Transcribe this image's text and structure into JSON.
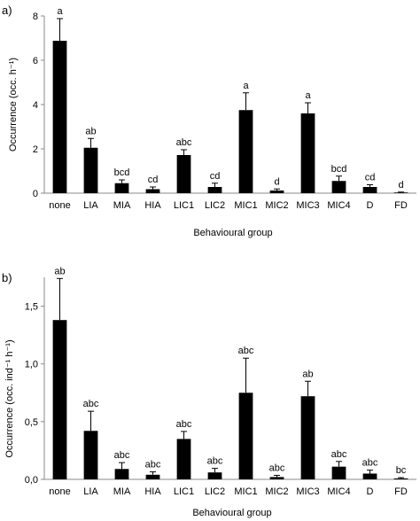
{
  "chart_data": [
    {
      "panel_label": "a)",
      "type": "bar",
      "categories": [
        "none",
        "LIA",
        "MIA",
        "HIA",
        "LIC1",
        "LIC2",
        "MIC1",
        "MIC2",
        "MIC3",
        "MIC4",
        "D",
        "FD"
      ],
      "values": [
        6.88,
        2.05,
        0.45,
        0.18,
        1.72,
        0.28,
        3.75,
        0.12,
        3.6,
        0.55,
        0.28,
        0.03
      ],
      "errors": [
        1.0,
        0.42,
        0.15,
        0.1,
        0.24,
        0.17,
        0.78,
        0.07,
        0.48,
        0.22,
        0.1,
        0.02
      ],
      "significance_labels": [
        "a",
        "ab",
        "bcd",
        "cd",
        "abc",
        "cd",
        "a",
        "d",
        "a",
        "bcd",
        "cd",
        "d"
      ],
      "ylabel": "Occurrence (occ. h⁻¹)",
      "xlabel": "Behavioural group",
      "ylim": [
        0,
        8
      ],
      "yticks": [
        0,
        2,
        4,
        6,
        8
      ],
      "ytick_labels": [
        "0",
        "2",
        "4",
        "6",
        "8"
      ],
      "grid": false,
      "bar_color": "#000000"
    },
    {
      "panel_label": "b)",
      "type": "bar",
      "categories": [
        "none",
        "LIA",
        "MIA",
        "HIA",
        "LIC1",
        "LIC2",
        "MIC1",
        "MIC2",
        "MIC3",
        "MIC4",
        "D",
        "FD"
      ],
      "values": [
        1.38,
        0.42,
        0.09,
        0.04,
        0.35,
        0.06,
        0.75,
        0.02,
        0.72,
        0.11,
        0.05,
        0.008
      ],
      "errors": [
        0.36,
        0.17,
        0.055,
        0.025,
        0.065,
        0.035,
        0.3,
        0.015,
        0.13,
        0.045,
        0.03,
        0.007
      ],
      "significance_labels": [
        "ab",
        "abc",
        "abc",
        "abc",
        "abc",
        "abc",
        "abc",
        "abc",
        "ab",
        "abc",
        "abc",
        "bc"
      ],
      "ylabel": "Occurrence (occ. ind⁻¹ h⁻¹)",
      "xlabel": "Behavioural group",
      "ylim": [
        0,
        1.75
      ],
      "yticks": [
        0,
        0.5,
        1.0,
        1.5
      ],
      "ytick_labels": [
        "0,0",
        "0,5",
        "1,0",
        "1,5"
      ],
      "grid": false,
      "bar_color": "#000000"
    }
  ]
}
